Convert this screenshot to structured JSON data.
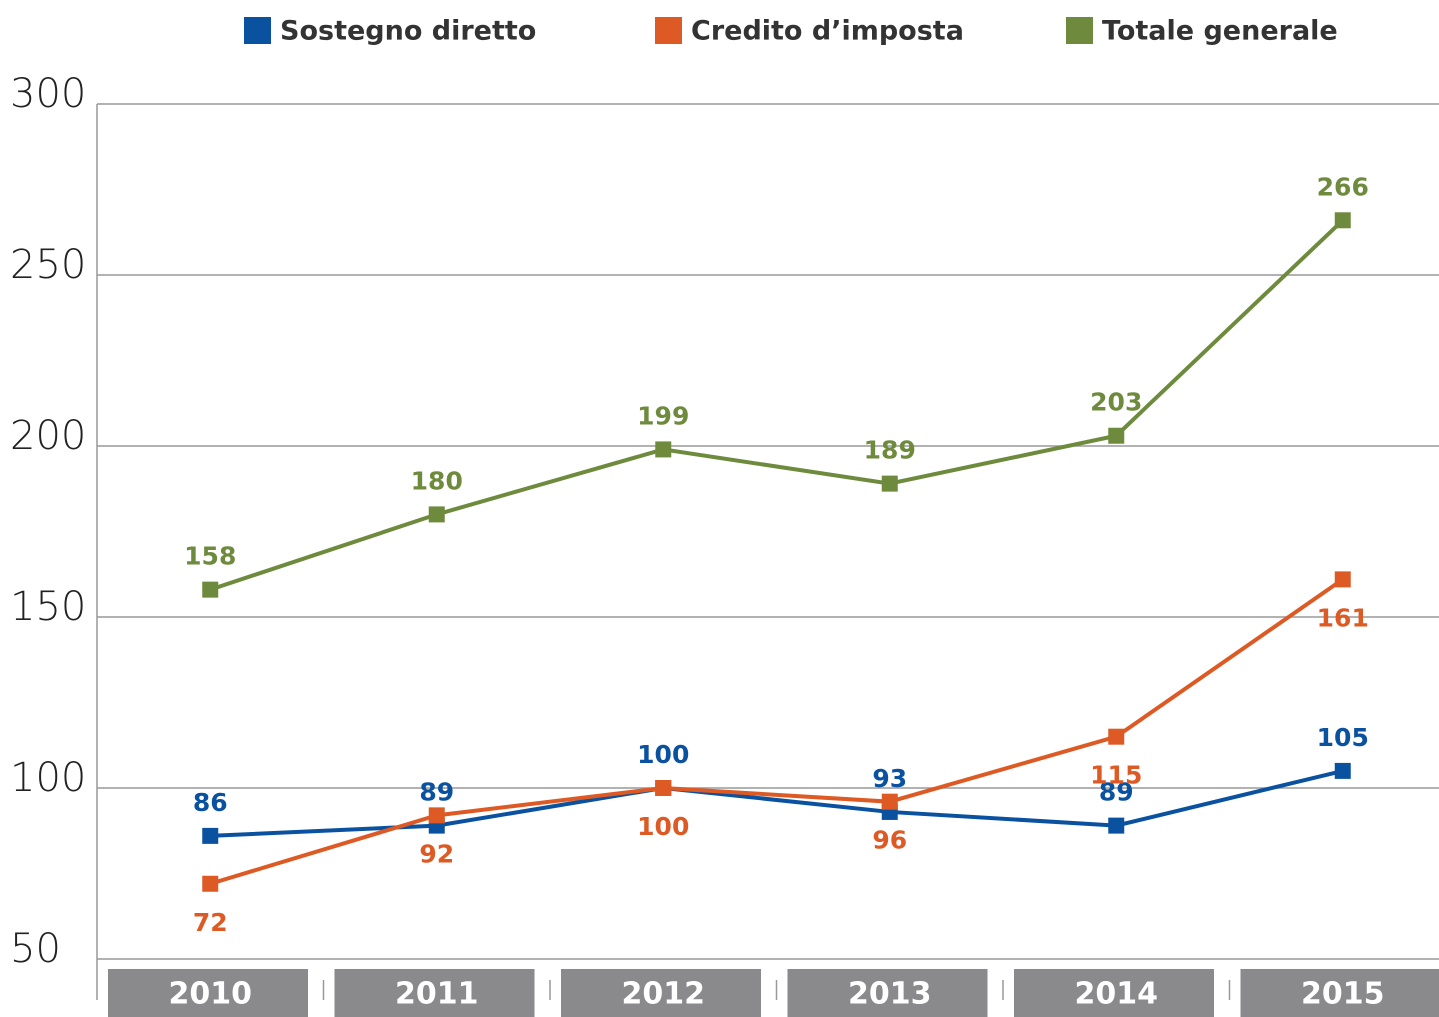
{
  "chart_data": {
    "type": "line",
    "categories": [
      "2010",
      "2011",
      "2012",
      "2013",
      "2014",
      "2015"
    ],
    "series": [
      {
        "name": "Sostegno diretto",
        "color": "#0a52a0",
        "values": [
          86,
          89,
          100,
          93,
          89,
          105
        ]
      },
      {
        "name": "Credito d’imposta",
        "color": "#dd5a24",
        "values": [
          72,
          92,
          100,
          96,
          115,
          161
        ]
      },
      {
        "name": "Totale generale",
        "color": "#6e8b3d",
        "values": [
          158,
          180,
          199,
          189,
          203,
          266
        ]
      }
    ],
    "ylim": [
      50,
      300
    ],
    "yticks": [
      50,
      100,
      150,
      200,
      250,
      300
    ],
    "grid": true
  }
}
